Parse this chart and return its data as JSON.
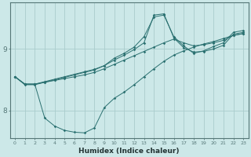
{
  "xlabel": "Humidex (Indice chaleur)",
  "bg_color": "#cce8e8",
  "grid_color": "#aacccc",
  "line_color": "#2a7070",
  "xlim": [
    -0.5,
    23.5
  ],
  "ylim": [
    7.55,
    9.75
  ],
  "yticks": [
    8,
    9
  ],
  "xticks": [
    0,
    1,
    2,
    3,
    4,
    5,
    6,
    7,
    8,
    9,
    10,
    11,
    12,
    13,
    14,
    15,
    16,
    17,
    18,
    19,
    20,
    21,
    22,
    23
  ],
  "line1_x": [
    0,
    1,
    2,
    3,
    4,
    5,
    6,
    7,
    8,
    9,
    10,
    11,
    12,
    13,
    14,
    15,
    16,
    17,
    18,
    19,
    20,
    21,
    22,
    23
  ],
  "line1_y": [
    8.55,
    8.42,
    8.42,
    8.46,
    8.5,
    8.54,
    8.58,
    8.62,
    8.66,
    8.73,
    8.85,
    8.93,
    9.03,
    9.2,
    9.52,
    9.55,
    9.2,
    9.05,
    8.93,
    8.97,
    9.04,
    9.1,
    9.27,
    9.3
  ],
  "line2_x": [
    0,
    1,
    2,
    3,
    4,
    5,
    6,
    7,
    8,
    9,
    10,
    11,
    12,
    13,
    14,
    15,
    16,
    17,
    18,
    19,
    20,
    21,
    22,
    23
  ],
  "line2_y": [
    8.55,
    8.43,
    8.43,
    8.47,
    8.51,
    8.55,
    8.59,
    8.63,
    8.67,
    8.73,
    8.82,
    8.9,
    8.99,
    9.1,
    9.55,
    9.57,
    9.18,
    9.02,
    8.95,
    8.96,
    9.0,
    9.06,
    9.24,
    9.27
  ],
  "line3_x": [
    0,
    1,
    2,
    3,
    4,
    5,
    6,
    7,
    8,
    9,
    10,
    11,
    12,
    13,
    14,
    15,
    16,
    17,
    18,
    19,
    20,
    21,
    22,
    23
  ],
  "line3_y": [
    8.55,
    8.43,
    8.43,
    8.46,
    8.49,
    8.52,
    8.55,
    8.58,
    8.62,
    8.68,
    8.75,
    8.82,
    8.89,
    8.96,
    9.03,
    9.1,
    9.16,
    9.1,
    9.05,
    9.07,
    9.1,
    9.14,
    9.22,
    9.25
  ],
  "line4_x": [
    0,
    1,
    2,
    3,
    4,
    5,
    6,
    7,
    8,
    9,
    10,
    11,
    12,
    13,
    14,
    15,
    16,
    17,
    18,
    19,
    20,
    21,
    22,
    23
  ],
  "line4_y": [
    8.55,
    8.43,
    8.43,
    7.88,
    7.75,
    7.68,
    7.65,
    7.64,
    7.72,
    8.05,
    8.2,
    8.3,
    8.42,
    8.55,
    8.68,
    8.8,
    8.9,
    8.97,
    9.03,
    9.08,
    9.12,
    9.17,
    9.22,
    9.25
  ]
}
